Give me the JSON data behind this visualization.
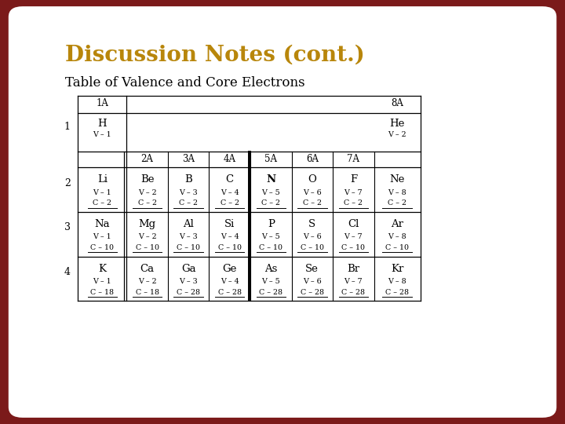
{
  "title": "Discussion Notes (cont.)",
  "subtitle": "Table of Valence and Core Electrons",
  "title_color": "#B8860B",
  "bg_outer": "#7B1A1A",
  "bg_inner": "#FFFFFF",
  "nav_color": "#FFFFFF",
  "table": {
    "row_labels": [
      "1",
      "2",
      "3",
      "4"
    ],
    "cells_row1": [
      {
        "element": "H",
        "valence": "V – 1",
        "core": "",
        "col": 1
      },
      {
        "element": "He",
        "valence": "V – 2",
        "core": "",
        "col": 8
      }
    ],
    "cells_row2": [
      {
        "element": "Li",
        "valence": "V – 1",
        "core": "C – 2",
        "bold": false
      },
      {
        "element": "Be",
        "valence": "V – 2",
        "core": "C – 2",
        "bold": false
      },
      {
        "element": "B",
        "valence": "V – 3",
        "core": "C – 2",
        "bold": false
      },
      {
        "element": "C",
        "valence": "V – 4",
        "core": "C – 2",
        "bold": false
      },
      {
        "element": "N",
        "valence": "V – 5",
        "core": "C – 2",
        "bold": true
      },
      {
        "element": "O",
        "valence": "V – 6",
        "core": "C – 2",
        "bold": false
      },
      {
        "element": "F",
        "valence": "V – 7",
        "core": "C – 2",
        "bold": false
      },
      {
        "element": "Ne",
        "valence": "V – 8",
        "core": "C – 2",
        "bold": false
      }
    ],
    "cells_row3": [
      {
        "element": "Na",
        "valence": "V – 1",
        "core": "C – 10",
        "bold": false
      },
      {
        "element": "Mg",
        "valence": "V – 2",
        "core": "C – 10",
        "bold": false
      },
      {
        "element": "Al",
        "valence": "V – 3",
        "core": "C – 10",
        "bold": false
      },
      {
        "element": "Si",
        "valence": "V – 4",
        "core": "C – 10",
        "bold": false
      },
      {
        "element": "P",
        "valence": "V – 5",
        "core": "C – 10",
        "bold": false
      },
      {
        "element": "S",
        "valence": "V – 6",
        "core": "C – 10",
        "bold": false
      },
      {
        "element": "Cl",
        "valence": "V – 7",
        "core": "C – 10",
        "bold": false
      },
      {
        "element": "Ar",
        "valence": "V – 8",
        "core": "C – 10",
        "bold": false
      }
    ],
    "cells_row4": [
      {
        "element": "K",
        "valence": "V – 1",
        "core": "C – 18",
        "bold": false
      },
      {
        "element": "Ca",
        "valence": "V – 2",
        "core": "C – 18",
        "bold": false
      },
      {
        "element": "Ga",
        "valence": "V – 3",
        "core": "C – 28",
        "bold": false
      },
      {
        "element": "Ge",
        "valence": "V – 4",
        "core": "C – 28",
        "bold": false
      },
      {
        "element": "As",
        "valence": "V – 5",
        "core": "C – 28",
        "bold": false
      },
      {
        "element": "Se",
        "valence": "V – 6",
        "core": "C – 28",
        "bold": false
      },
      {
        "element": "Br",
        "valence": "V – 7",
        "core": "C – 28",
        "bold": false
      },
      {
        "element": "Kr",
        "valence": "V – 8",
        "core": "C – 28",
        "bold": false
      }
    ]
  }
}
